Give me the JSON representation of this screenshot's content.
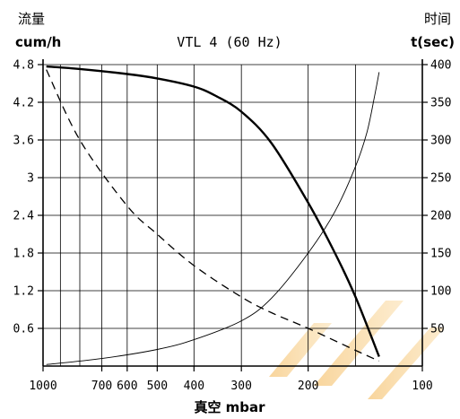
{
  "chart_data": {
    "type": "line",
    "title": "VTL 4 (60 Hz)",
    "left_axis": {
      "label_cn": "流量",
      "unit": "cum/h",
      "ylim": [
        0,
        4.8
      ],
      "ticks": [
        "0.6",
        "1.2",
        "1.8",
        "2.4",
        "3",
        "3.6",
        "4.2",
        "4.8"
      ]
    },
    "right_axis": {
      "label_cn": "时间",
      "unit": "t(sec)",
      "ylim": [
        0,
        400
      ],
      "ticks": [
        "50",
        "100",
        "150",
        "200",
        "250",
        "300",
        "350",
        "400"
      ]
    },
    "x_axis": {
      "label": "真空 mbar",
      "scale": "log",
      "reversed": true,
      "xlim": [
        1000,
        100
      ],
      "tick_labels": [
        "1000",
        "700",
        "600",
        "500",
        "400",
        "300",
        "200",
        "100"
      ],
      "gridlines": [
        1000,
        900,
        800,
        700,
        600,
        500,
        400,
        300,
        200,
        150
      ]
    },
    "grid": true,
    "series": [
      {
        "style": "solid-thick",
        "axis": "left",
        "x": [
          980,
          800,
          600,
          500,
          400,
          350,
          300,
          250,
          200,
          170,
          150,
          130
        ],
        "y": [
          4.77,
          4.73,
          4.65,
          4.58,
          4.45,
          4.3,
          4.05,
          3.55,
          2.6,
          1.8,
          1.1,
          0.15
        ]
      },
      {
        "style": "dashed",
        "axis": "left",
        "x": [
          980,
          800,
          600,
          500,
          400,
          300,
          250,
          200,
          150,
          130
        ],
        "y": [
          4.72,
          3.6,
          2.55,
          2.1,
          1.6,
          1.1,
          0.85,
          0.6,
          0.25,
          0.08
        ]
      },
      {
        "style": "solid-thin",
        "axis": "right",
        "x": [
          980,
          700,
          500,
          400,
          300,
          250,
          200,
          170,
          150,
          140,
          134,
          130
        ],
        "y": [
          2,
          10,
          22,
          35,
          60,
          90,
          150,
          205,
          265,
          310,
          355,
          390
        ]
      }
    ]
  }
}
